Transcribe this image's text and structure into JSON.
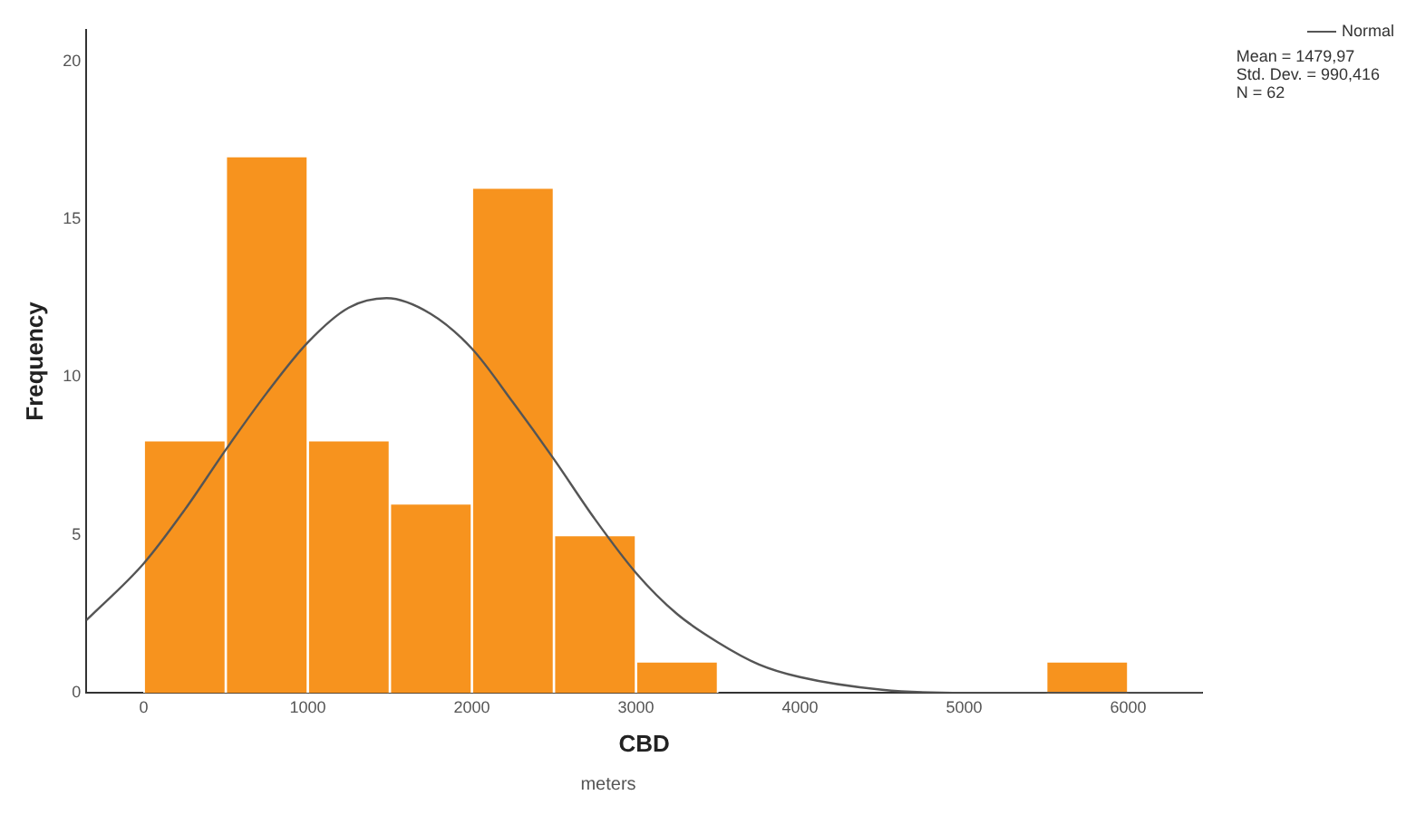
{
  "chart_data": {
    "type": "histogram",
    "xlabel": "CBD",
    "ylabel": "Frequency",
    "bins": [
      0,
      500,
      1000,
      1500,
      2000,
      2500,
      3000,
      3500,
      4000,
      4500,
      5000,
      5500,
      6000
    ],
    "values": [
      8,
      17,
      8,
      6,
      16,
      5,
      1,
      0,
      0,
      0,
      0,
      1
    ],
    "color": "#f7931e",
    "series": [
      {
        "name": "Normal",
        "type": "line",
        "color": "#555555",
        "x": [
          -350,
          0,
          250,
          500,
          750,
          1000,
          1250,
          1480,
          1750,
          2000,
          2250,
          2500,
          2750,
          3000,
          3250,
          3500,
          3750,
          4000,
          4500,
          5000,
          6450
        ],
        "values": [
          2.3,
          4.1,
          5.8,
          7.7,
          9.5,
          11.1,
          12.2,
          12.5,
          12.0,
          10.9,
          9.2,
          7.4,
          5.5,
          3.8,
          2.5,
          1.6,
          0.9,
          0.5,
          0.1,
          0,
          0
        ]
      }
    ],
    "xlim": [
      -350,
      6450
    ],
    "xticks": [
      0,
      1000,
      2000,
      3000,
      4000,
      5000,
      6000
    ],
    "ylim": [
      0,
      21
    ],
    "yticks": [
      0,
      5,
      10,
      15,
      20
    ],
    "grid": false,
    "legend": "top right",
    "marker": "none",
    "line_style": "solid",
    "annotations": [
      "Mean = 1479,97",
      "Std. Dev. = 990,416",
      "N = 62",
      "meters"
    ]
  }
}
